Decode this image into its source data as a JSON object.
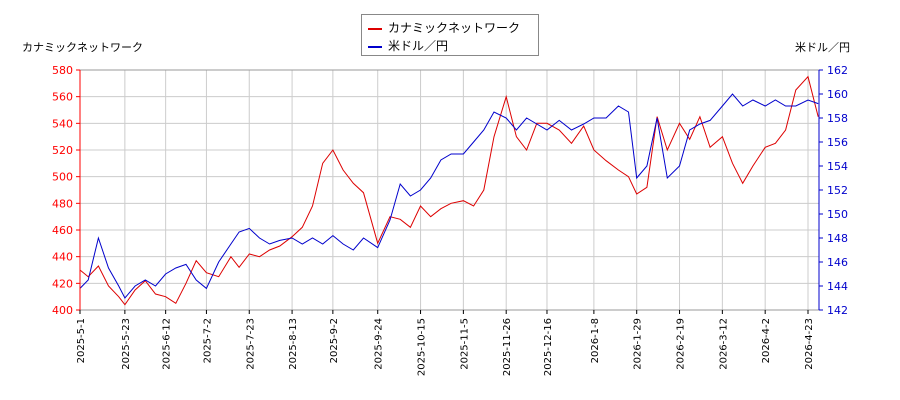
{
  "chart_data": {
    "type": "line",
    "left_axis_title": "カナミックネットワーク",
    "right_axis_title": "米ドル／円",
    "legend_position": "top-center",
    "grid": true,
    "x_tick_labels": [
      "2025-5-1",
      "2025-5-23",
      "2025-6-12",
      "2025-7-2",
      "2025-7-23",
      "2025-8-13",
      "2025-9-2",
      "2025-9-24",
      "2025-10-15",
      "2025-11-5",
      "2025-11-26",
      "2025-12-16",
      "2026-1-8",
      "2026-1-29",
      "2026-2-19",
      "2026-3-12",
      "2026-4-2",
      "2026-4-23"
    ],
    "y_left": {
      "range": [
        400,
        580
      ],
      "ticks": [
        400,
        420,
        440,
        460,
        480,
        500,
        520,
        540,
        560,
        580
      ],
      "color": "#ff0000"
    },
    "y_right": {
      "range": [
        142,
        162
      ],
      "ticks": [
        142,
        144,
        146,
        148,
        150,
        152,
        154,
        156,
        158,
        160,
        162
      ],
      "color": "#0000cc"
    },
    "series": [
      {
        "name": "カナミックネットワーク",
        "axis": "left",
        "color": "#dd0000",
        "x": [
          "2025-5-1",
          "2025-5-5",
          "2025-5-10",
          "2025-5-15",
          "2025-5-20",
          "2025-5-23",
          "2025-5-28",
          "2025-6-2",
          "2025-6-7",
          "2025-6-12",
          "2025-6-17",
          "2025-6-22",
          "2025-6-27",
          "2025-7-2",
          "2025-7-8",
          "2025-7-14",
          "2025-7-18",
          "2025-7-23",
          "2025-7-28",
          "2025-8-2",
          "2025-8-7",
          "2025-8-13",
          "2025-8-18",
          "2025-8-23",
          "2025-8-28",
          "2025-9-2",
          "2025-9-7",
          "2025-9-12",
          "2025-9-17",
          "2025-9-24",
          "2025-9-30",
          "2025-10-5",
          "2025-10-10",
          "2025-10-15",
          "2025-10-20",
          "2025-10-25",
          "2025-10-30",
          "2025-11-5",
          "2025-11-10",
          "2025-11-15",
          "2025-11-20",
          "2025-11-26",
          "2025-12-1",
          "2025-12-6",
          "2025-12-11",
          "2025-12-16",
          "2025-12-22",
          "2025-12-28",
          "2026-1-3",
          "2026-1-8",
          "2026-1-14",
          "2026-1-20",
          "2026-1-25",
          "2026-1-29",
          "2026-2-3",
          "2026-2-8",
          "2026-2-13",
          "2026-2-19",
          "2026-2-24",
          "2026-3-1",
          "2026-3-6",
          "2026-3-12",
          "2026-3-17",
          "2026-3-22",
          "2026-3-27",
          "2026-4-2",
          "2026-4-7",
          "2026-4-12",
          "2026-4-17",
          "2026-4-23",
          "2026-4-28"
        ],
        "values": [
          430,
          425,
          433,
          418,
          410,
          404,
          415,
          422,
          412,
          410,
          405,
          420,
          437,
          428,
          425,
          440,
          432,
          442,
          440,
          445,
          448,
          455,
          462,
          478,
          510,
          520,
          505,
          495,
          488,
          450,
          470,
          468,
          462,
          478,
          470,
          476,
          480,
          482,
          478,
          490,
          530,
          560,
          530,
          520,
          540,
          540,
          535,
          525,
          538,
          520,
          512,
          505,
          500,
          487,
          492,
          545,
          520,
          540,
          528,
          545,
          522,
          530,
          510,
          495,
          508,
          522,
          525,
          535,
          565,
          575,
          545
        ]
      },
      {
        "name": "米ドル／円",
        "axis": "right",
        "color": "#0000cc",
        "x": [
          "2025-5-1",
          "2025-5-5",
          "2025-5-10",
          "2025-5-15",
          "2025-5-20",
          "2025-5-23",
          "2025-5-28",
          "2025-6-2",
          "2025-6-7",
          "2025-6-12",
          "2025-6-17",
          "2025-6-22",
          "2025-6-27",
          "2025-7-2",
          "2025-7-8",
          "2025-7-14",
          "2025-7-18",
          "2025-7-23",
          "2025-7-28",
          "2025-8-2",
          "2025-8-7",
          "2025-8-13",
          "2025-8-18",
          "2025-8-23",
          "2025-8-28",
          "2025-9-2",
          "2025-9-7",
          "2025-9-12",
          "2025-9-17",
          "2025-9-24",
          "2025-9-30",
          "2025-10-5",
          "2025-10-10",
          "2025-10-15",
          "2025-10-20",
          "2025-10-25",
          "2025-10-30",
          "2025-11-5",
          "2025-11-10",
          "2025-11-15",
          "2025-11-20",
          "2025-11-26",
          "2025-12-1",
          "2025-12-6",
          "2025-12-11",
          "2025-12-16",
          "2025-12-22",
          "2025-12-28",
          "2026-1-3",
          "2026-1-8",
          "2026-1-14",
          "2026-1-20",
          "2026-1-25",
          "2026-1-29",
          "2026-2-3",
          "2026-2-8",
          "2026-2-13",
          "2026-2-19",
          "2026-2-24",
          "2026-3-1",
          "2026-3-6",
          "2026-3-12",
          "2026-3-17",
          "2026-3-22",
          "2026-3-27",
          "2026-4-2",
          "2026-4-7",
          "2026-4-12",
          "2026-4-17",
          "2026-4-23",
          "2026-4-28"
        ],
        "values": [
          143.8,
          144.5,
          148.0,
          145.5,
          144.0,
          143.0,
          144.0,
          144.5,
          144.0,
          145.0,
          145.5,
          145.8,
          144.5,
          143.8,
          146.0,
          147.5,
          148.5,
          148.8,
          148.0,
          147.5,
          147.8,
          148.0,
          147.5,
          148.0,
          147.5,
          148.2,
          147.5,
          147.0,
          148.0,
          147.2,
          149.5,
          152.5,
          151.5,
          152.0,
          153.0,
          154.5,
          155.0,
          155.0,
          156.0,
          157.0,
          158.5,
          158.0,
          157.0,
          158.0,
          157.5,
          157.0,
          157.8,
          157.0,
          157.5,
          158.0,
          158.0,
          159.0,
          158.5,
          153.0,
          154.0,
          158.0,
          153.0,
          154.0,
          157.0,
          157.5,
          157.8,
          159.0,
          160.0,
          159.0,
          159.5,
          159.0,
          159.5,
          159.0,
          159.0,
          159.5,
          159.2
        ]
      }
    ]
  }
}
